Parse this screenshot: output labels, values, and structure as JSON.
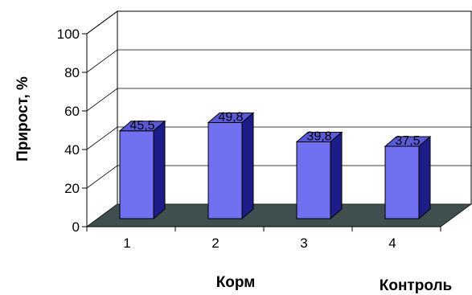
{
  "chart_data": {
    "type": "bar",
    "categories": [
      "1",
      "2",
      "3",
      "4"
    ],
    "values": [
      45.5,
      49.8,
      39.8,
      37.5
    ],
    "data_labels": [
      "45,5",
      "49,8",
      "39,8",
      "37,5"
    ],
    "ylabel": "Прирост, %",
    "xlabel": "Корм",
    "extra_label": "Контроль",
    "ylim": [
      0,
      100
    ],
    "yticks": [
      0,
      20,
      40,
      60,
      80,
      100
    ],
    "grid": true,
    "style": "3d-bar",
    "bar_color": "#7070F0",
    "floor_color": "#3F4F4F"
  }
}
